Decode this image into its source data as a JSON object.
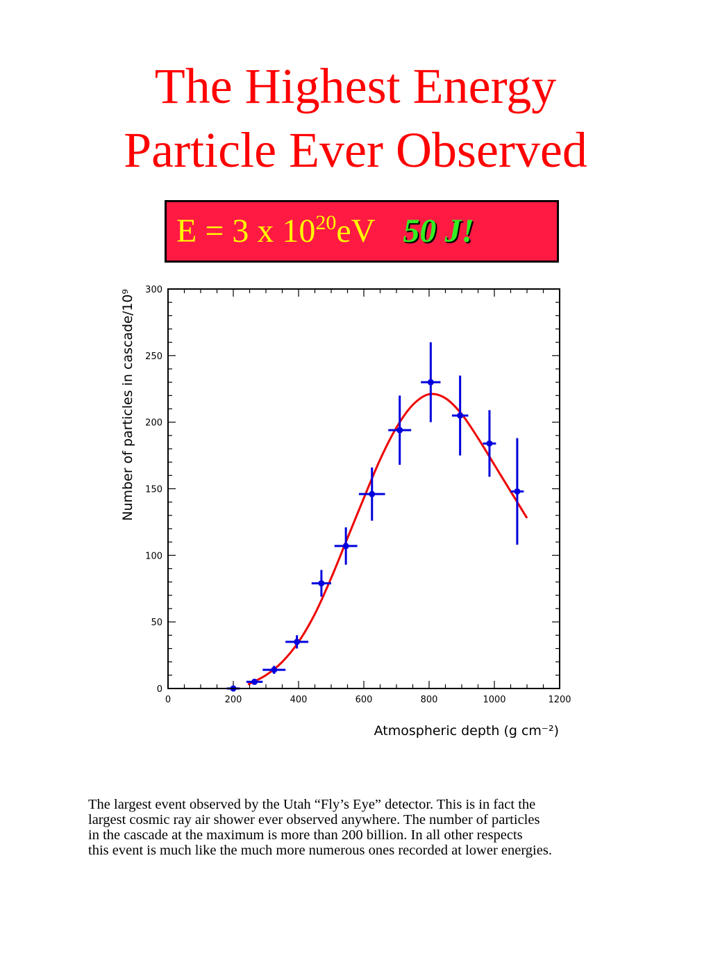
{
  "title": {
    "line1": "The Highest Energy",
    "line2": "Particle Ever Observed"
  },
  "energy_box": {
    "prefix": "E = 3 x 10",
    "exponent": "20",
    "unit": "eV",
    "joules": "50 J!",
    "background_color": "#ff1a44",
    "text_color": "#ffff00",
    "joules_color": "#33ee22"
  },
  "chart_data": {
    "type": "scatter",
    "title": "",
    "xlabel": "Atmospheric depth (g cm⁻²)",
    "ylabel": "Number of particles in cascade/10⁹",
    "xlim": [
      0,
      1200
    ],
    "ylim": [
      0,
      300
    ],
    "x_ticks": [
      "0",
      "200",
      "400",
      "600",
      "800",
      "1000",
      "1200"
    ],
    "y_ticks": [
      "0",
      "50",
      "100",
      "150",
      "200",
      "250",
      "300"
    ],
    "grid": false,
    "legend": "none",
    "series": [
      {
        "kind": "points_with_error_bars",
        "color": "#0000dd",
        "points": [
          {
            "x": 200,
            "y": 0,
            "xerr": 20,
            "yerr": 1
          },
          {
            "x": 265,
            "y": 5,
            "xerr": 25,
            "yerr": 2
          },
          {
            "x": 325,
            "y": 14,
            "xerr": 35,
            "yerr": 3
          },
          {
            "x": 395,
            "y": 35,
            "xerr": 35,
            "yerr": 5
          },
          {
            "x": 470,
            "y": 79,
            "xerr": 30,
            "yerr": 10
          },
          {
            "x": 545,
            "y": 107,
            "xerr": 35,
            "yerr": 14
          },
          {
            "x": 625,
            "y": 146,
            "xerr": 40,
            "yerr": 20
          },
          {
            "x": 710,
            "y": 194,
            "xerr": 35,
            "yerr": 26
          },
          {
            "x": 805,
            "y": 230,
            "xerr": 30,
            "yerr": 30
          },
          {
            "x": 895,
            "y": 205,
            "xerr": 25,
            "yerr": 30
          },
          {
            "x": 985,
            "y": 184,
            "xerr": 20,
            "yerr": 25
          },
          {
            "x": 1070,
            "y": 148,
            "xerr": 20,
            "yerr": 40
          }
        ]
      },
      {
        "kind": "fit_curve",
        "color": "#ee0000",
        "x": [
          245,
          300,
          350,
          400,
          450,
          500,
          550,
          600,
          650,
          700,
          750,
          800,
          850,
          900,
          950,
          1000,
          1050,
          1100
        ],
        "y": [
          3,
          10,
          20,
          35,
          56,
          83,
          113,
          143,
          172,
          196,
          213,
          221,
          218,
          206,
          188,
          168,
          148,
          128
        ]
      }
    ]
  },
  "caption": {
    "line1": "The largest event observed by the Utah “Fly’s Eye” detector.  This is in fact the",
    "line2": "largest cosmic ray air shower ever observed anywhere.  The number of particles",
    "line3": "in the cascade at the maximum is more than 200 billion.  In all other respects",
    "line4": "this event is much like the much more numerous ones recorded at lower energies."
  }
}
